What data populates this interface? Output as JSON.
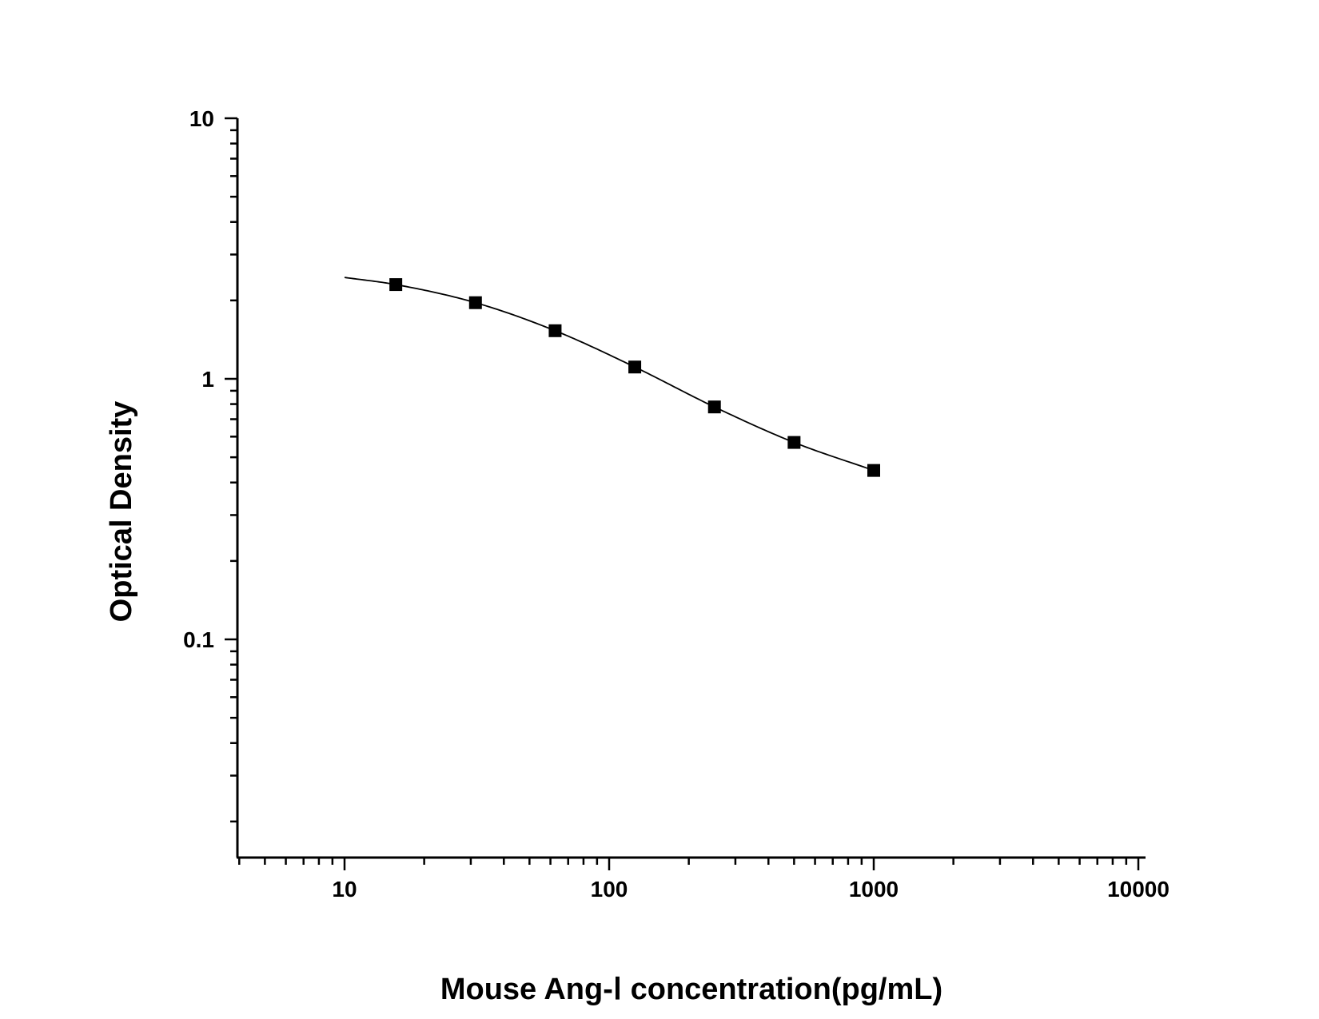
{
  "chart_data": {
    "type": "scatter",
    "xlabel": "Mouse Ang-Ⅰ concentration(pg/mL)",
    "ylabel": "Optical Density",
    "xscale": "log",
    "yscale": "log",
    "xlim": [
      4,
      10000
    ],
    "ylim": [
      0.02,
      10
    ],
    "x_tick_labels": [
      "10",
      "100",
      "1000",
      "10000"
    ],
    "y_tick_labels": [
      "0.1",
      "1",
      "10"
    ],
    "grid": false,
    "legend": "none",
    "marker": "square",
    "points": {
      "x": [
        15.625,
        31.25,
        62.5,
        125,
        250,
        500,
        1000
      ],
      "y": [
        2.3,
        1.96,
        1.53,
        1.11,
        0.78,
        0.57,
        0.445
      ]
    },
    "fit_curve": {
      "x": [
        10,
        15.625,
        31.25,
        62.5,
        125,
        250,
        500,
        1000
      ],
      "y": [
        2.45,
        2.3,
        1.96,
        1.53,
        1.11,
        0.78,
        0.57,
        0.445
      ]
    },
    "colors": {
      "marker": "#000000",
      "line": "#000000",
      "axis": "#000000"
    }
  }
}
